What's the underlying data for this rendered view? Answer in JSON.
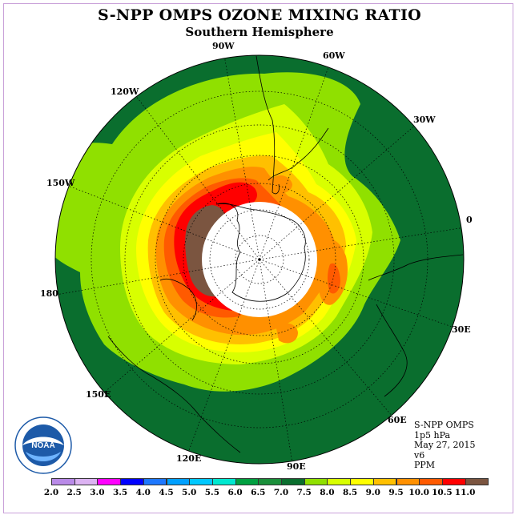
{
  "header": {
    "title": "S-NPP OMPS OZONE MIXING RATIO",
    "subtitle": "Southern Hemisphere"
  },
  "map": {
    "projection": "south-polar-stereographic",
    "longitude_labels": [
      {
        "id": "90w",
        "text": "90W"
      },
      {
        "id": "60w",
        "text": "60W"
      },
      {
        "id": "30w",
        "text": "30W"
      },
      {
        "id": "0",
        "text": "0"
      },
      {
        "id": "30e",
        "text": "30E"
      },
      {
        "id": "60e",
        "text": "60E"
      },
      {
        "id": "90e",
        "text": "90E"
      },
      {
        "id": "120e",
        "text": "120E"
      },
      {
        "id": "150e",
        "text": "150E"
      },
      {
        "id": "180",
        "text": "180"
      },
      {
        "id": "150w",
        "text": "150W"
      },
      {
        "id": "120w",
        "text": "120W"
      }
    ],
    "band_colors": [
      "#0a6e2e",
      "#1a8f3a",
      "#90e000",
      "#d8ff00",
      "#ffff00",
      "#ffc000",
      "#ff9000",
      "#ff5a00",
      "#ff0000",
      "#7b5540"
    ]
  },
  "info": {
    "line1": "S-NPP OMPS",
    "line2": "1p5 hPa",
    "line3": "May 27, 2015",
    "line4": "v6",
    "line5": "PPM"
  },
  "logo": {
    "text": "NOAA"
  },
  "colorbar": {
    "labels": [
      "2.0",
      "2.5",
      "3.0",
      "3.5",
      "4.0",
      "4.5",
      "5.0",
      "5.5",
      "6.0",
      "6.5",
      "7.0",
      "7.5",
      "8.0",
      "8.5",
      "9.0",
      "9.5",
      "10.0",
      "10.5",
      "11.0"
    ],
    "colors": [
      "#b98ae8",
      "#dcb2f2",
      "#ff00ff",
      "#0000ff",
      "#1e78ff",
      "#00a0ff",
      "#00c8ff",
      "#00e8d0",
      "#00a040",
      "#1a8f3a",
      "#0a6e2e",
      "#90e000",
      "#d8ff00",
      "#ffff00",
      "#ffc000",
      "#ff9000",
      "#ff5a00",
      "#ff0000",
      "#7b5540"
    ]
  }
}
